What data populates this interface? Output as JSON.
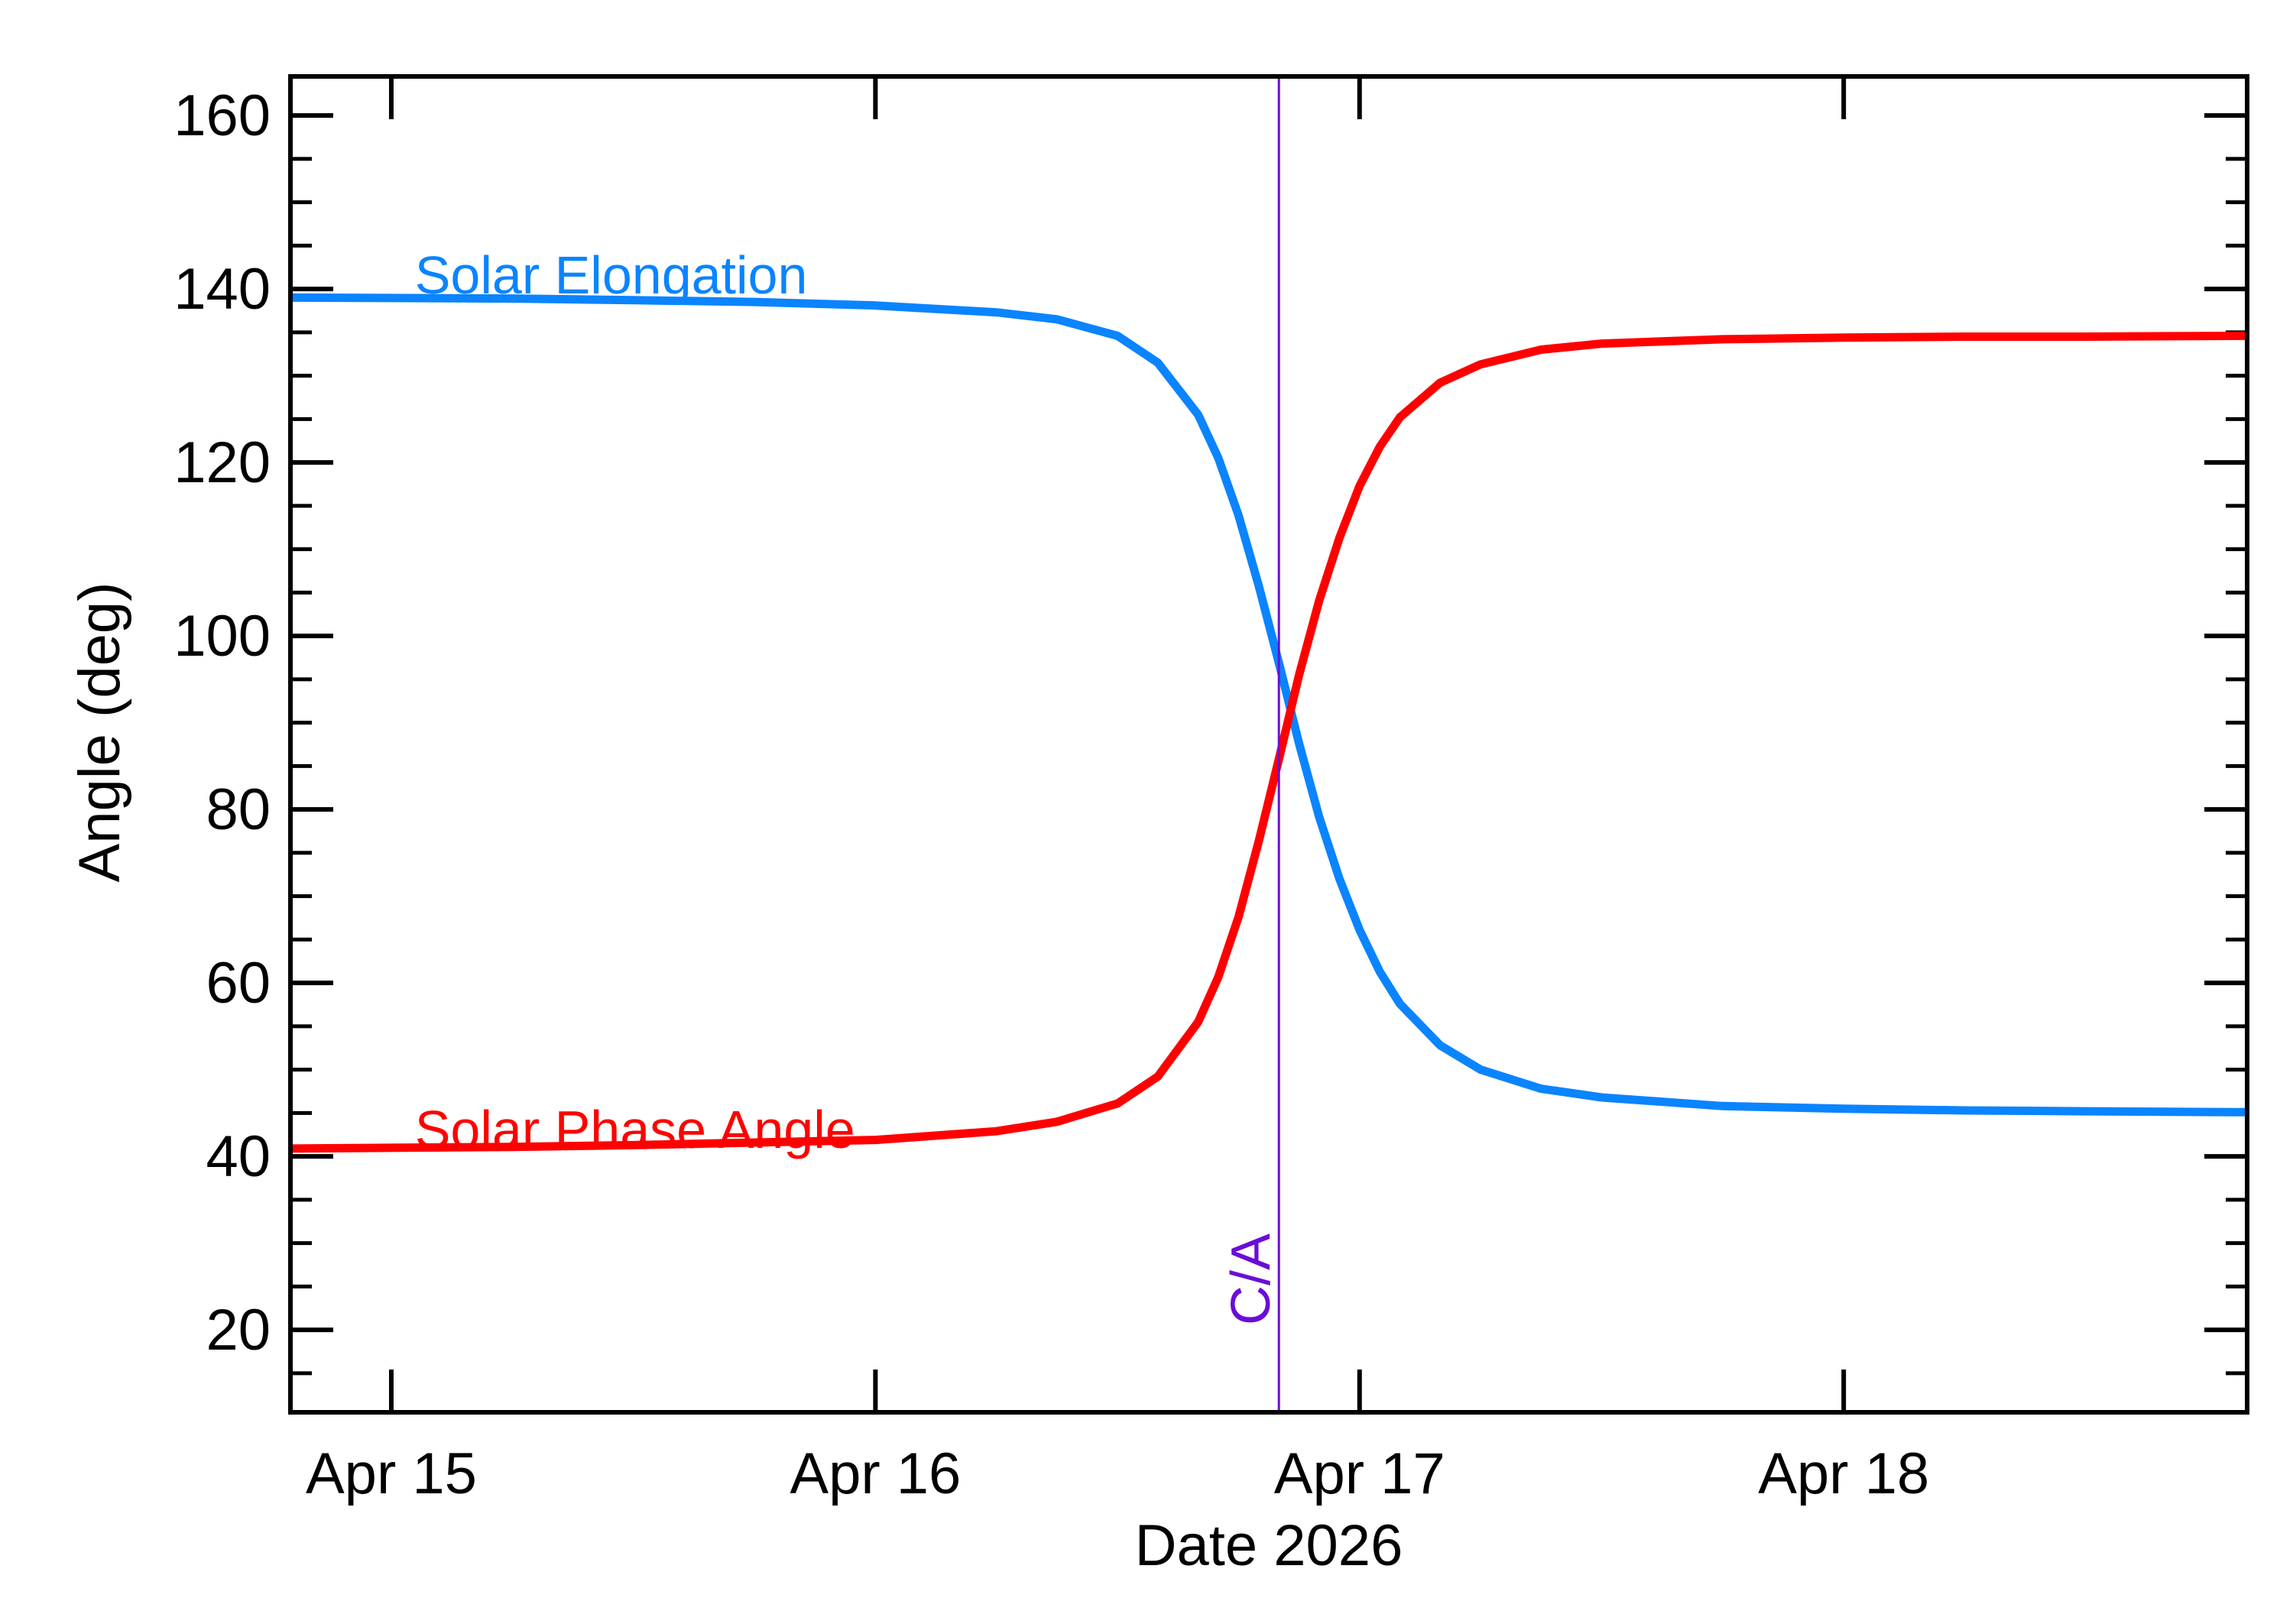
{
  "chart_data": {
    "type": "line",
    "title": "",
    "xlabel": "Date 2026",
    "ylabel": "Angle (deg)",
    "xlim": [
      "2026-04-14 19:00",
      "2026-04-18 20:00"
    ],
    "ylim": [
      10.5,
      164.5
    ],
    "x_ticks": [
      {
        "date": "2026-04-15",
        "label": "Apr 15"
      },
      {
        "date": "2026-04-16",
        "label": "Apr 16"
      },
      {
        "date": "2026-04-17",
        "label": "Apr 17"
      },
      {
        "date": "2026-04-18",
        "label": "Apr 18"
      }
    ],
    "y_ticks": [
      20,
      40,
      60,
      80,
      100,
      120,
      140,
      160
    ],
    "y_minor_step": 5,
    "x_minor_per_major": 0,
    "grid": false,
    "series": [
      {
        "name": "Solar Elongation",
        "color": "#0a84ff",
        "x": [
          "2026-04-14 19:00",
          "2026-04-15 06:00",
          "2026-04-15 12:00",
          "2026-04-15 18:00",
          "2026-04-16 00:00",
          "2026-04-16 06:00",
          "2026-04-16 09:00",
          "2026-04-16 12:00",
          "2026-04-16 14:00",
          "2026-04-16 16:00",
          "2026-04-16 17:00",
          "2026-04-16 18:00",
          "2026-04-16 19:00",
          "2026-04-16 20:00",
          "2026-04-16 21:00",
          "2026-04-16 22:00",
          "2026-04-16 23:00",
          "2026-04-17 00:00",
          "2026-04-17 01:00",
          "2026-04-17 02:00",
          "2026-04-17 04:00",
          "2026-04-17 06:00",
          "2026-04-17 09:00",
          "2026-04-17 12:00",
          "2026-04-17 18:00",
          "2026-04-18 00:00",
          "2026-04-18 06:00",
          "2026-04-18 12:00",
          "2026-04-18 20:00"
        ],
        "y": [
          139,
          138.9,
          138.7,
          138.5,
          138.1,
          137.3,
          136.5,
          134.6,
          131.5,
          125.5,
          120.5,
          113.9,
          105.8,
          96.9,
          87.6,
          79.1,
          72.0,
          66.1,
          61.3,
          57.6,
          52.8,
          50.0,
          47.8,
          46.8,
          45.8,
          45.5,
          45.3,
          45.2,
          45.1
        ]
      },
      {
        "name": "Solar Phase Angle",
        "color": "#ff0000",
        "x": [
          "2026-04-14 19:00",
          "2026-04-15 06:00",
          "2026-04-15 12:00",
          "2026-04-15 18:00",
          "2026-04-16 00:00",
          "2026-04-16 06:00",
          "2026-04-16 09:00",
          "2026-04-16 12:00",
          "2026-04-16 14:00",
          "2026-04-16 16:00",
          "2026-04-16 17:00",
          "2026-04-16 18:00",
          "2026-04-16 19:00",
          "2026-04-16 20:00",
          "2026-04-16 21:00",
          "2026-04-16 22:00",
          "2026-04-16 23:00",
          "2026-04-17 00:00",
          "2026-04-17 01:00",
          "2026-04-17 02:00",
          "2026-04-17 04:00",
          "2026-04-17 06:00",
          "2026-04-17 09:00",
          "2026-04-17 12:00",
          "2026-04-17 18:00",
          "2026-04-18 00:00",
          "2026-04-18 06:00",
          "2026-04-18 12:00",
          "2026-04-18 20:00"
        ],
        "y": [
          40.9,
          41.1,
          41.3,
          41.6,
          41.9,
          42.9,
          44.0,
          46.1,
          49.2,
          55.5,
          60.7,
          67.6,
          76.3,
          85.8,
          95.5,
          104.1,
          111.3,
          117.3,
          121.8,
          125.2,
          129.2,
          131.3,
          133.0,
          133.7,
          134.2,
          134.4,
          134.5,
          134.5,
          134.6
        ]
      }
    ],
    "series_labels": [
      {
        "text": "Solar Elongation",
        "color": "#0a84ff",
        "x": "2026-04-15 01:10",
        "y": 139.5
      },
      {
        "text": "Solar Phase Angle",
        "color": "#ff0000",
        "x": "2026-04-15 01:10",
        "y": 41.0
      }
    ],
    "annotations": [
      {
        "type": "vline",
        "x": "2026-04-16 20:00",
        "label": "C/A",
        "color": "#6a0dd8"
      }
    ]
  }
}
